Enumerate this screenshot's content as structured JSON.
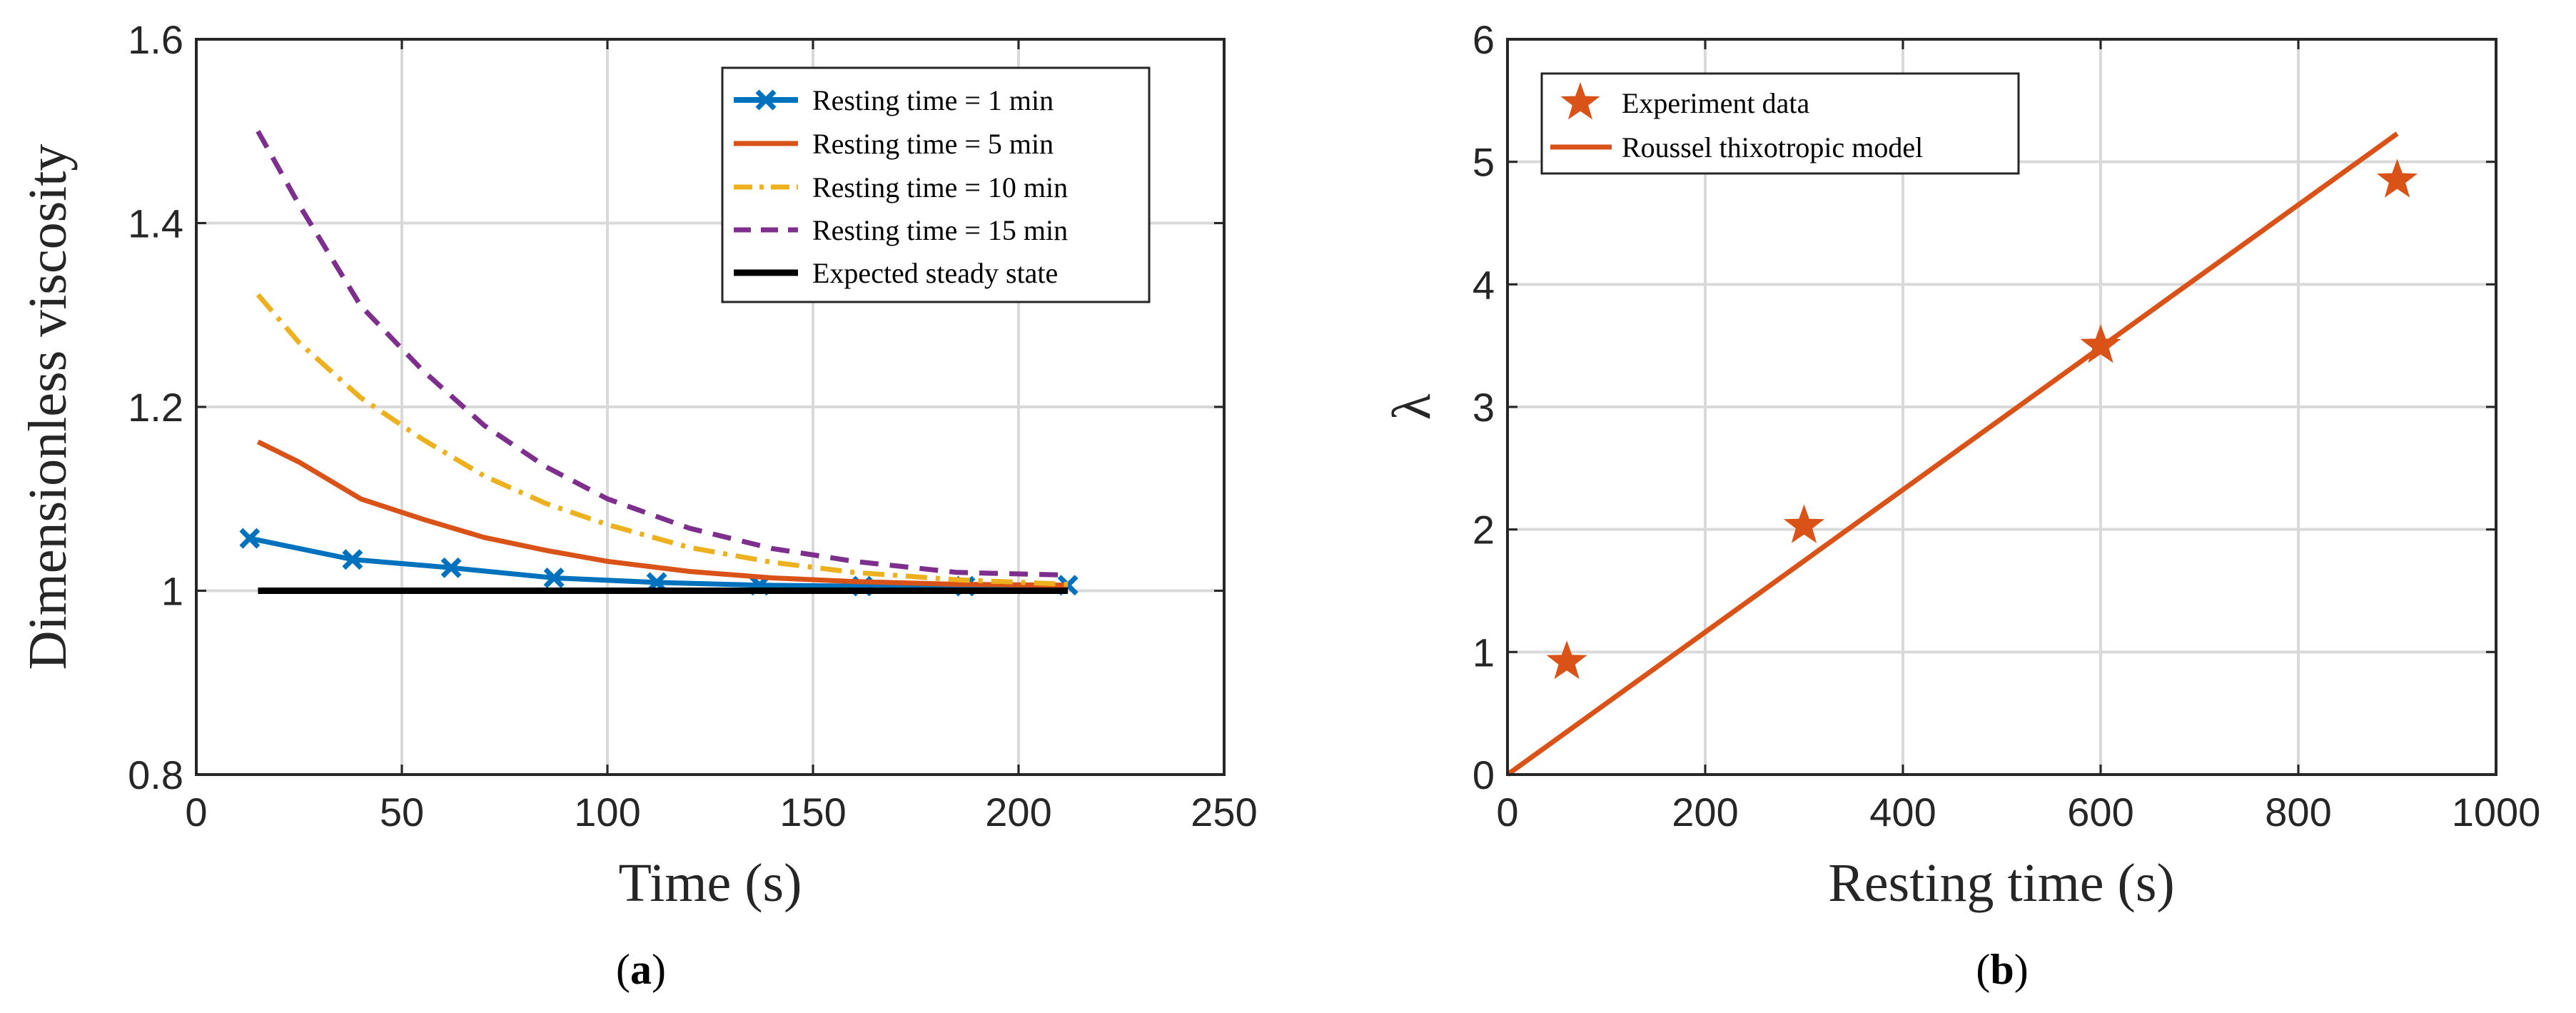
{
  "chart_data": [
    {
      "id": "a",
      "type": "line",
      "xlabel": "Time (s)",
      "ylabel": "Dimensionless viscosity",
      "xlim": [
        0,
        250
      ],
      "ylim": [
        0.8,
        1.6
      ],
      "xticks": [
        0,
        50,
        100,
        150,
        200,
        250
      ],
      "yticks": [
        0.8,
        1.0,
        1.2,
        1.4,
        1.6
      ],
      "xtick_labels": [
        "0",
        "50",
        "100",
        "150",
        "200",
        "250"
      ],
      "ytick_labels": [
        "0.8",
        "1",
        "1.2",
        "1.4",
        "1.6"
      ],
      "grid": true,
      "legend_position": "top-right",
      "caption_open": "(",
      "caption_letter": "a",
      "caption_close": ")",
      "series": [
        {
          "name": "Resting time = 1 min",
          "color": "#0072BD",
          "style": "solid",
          "marker": "x",
          "x": [
            13,
            38,
            62,
            87,
            112,
            137,
            162,
            187,
            212
          ],
          "y": [
            1.057,
            1.034,
            1.025,
            1.014,
            1.009,
            1.006,
            1.005,
            1.005,
            1.006
          ]
        },
        {
          "name": "Resting time = 5 min",
          "color": "#D95319",
          "style": "solid",
          "marker": "none",
          "x": [
            15,
            25,
            40,
            55,
            70,
            85,
            100,
            120,
            140,
            160,
            185,
            212
          ],
          "y": [
            1.162,
            1.14,
            1.1,
            1.078,
            1.058,
            1.044,
            1.032,
            1.021,
            1.014,
            1.01,
            1.007,
            1.006
          ]
        },
        {
          "name": "Resting time = 10 min",
          "color": "#EDB120",
          "style": "dashdot",
          "marker": "none",
          "x": [
            15,
            25,
            40,
            55,
            70,
            85,
            100,
            120,
            140,
            160,
            185,
            212
          ],
          "y": [
            1.322,
            1.27,
            1.21,
            1.165,
            1.125,
            1.095,
            1.072,
            1.047,
            1.031,
            1.02,
            1.012,
            1.007
          ]
        },
        {
          "name": "Resting time = 15 min",
          "color": "#7E2F8E",
          "style": "dashed",
          "marker": "none",
          "x": [
            15,
            25,
            40,
            55,
            70,
            85,
            100,
            120,
            140,
            160,
            185,
            212
          ],
          "y": [
            1.5,
            1.42,
            1.31,
            1.24,
            1.18,
            1.135,
            1.1,
            1.068,
            1.046,
            1.032,
            1.02,
            1.017
          ]
        },
        {
          "name": "Expected steady state",
          "color": "#000000",
          "style": "solid",
          "marker": "none",
          "x": [
            15,
            212
          ],
          "y": [
            1.0,
            1.0
          ]
        }
      ]
    },
    {
      "id": "b",
      "type": "scatter",
      "xlabel": "Resting time (s)",
      "ylabel": "λ",
      "xlim": [
        0,
        1000
      ],
      "ylim": [
        0,
        6
      ],
      "xticks": [
        0,
        200,
        400,
        600,
        800,
        1000
      ],
      "yticks": [
        0,
        1,
        2,
        3,
        4,
        5,
        6
      ],
      "xtick_labels": [
        "0",
        "200",
        "400",
        "600",
        "800",
        "1000"
      ],
      "ytick_labels": [
        "0",
        "1",
        "2",
        "3",
        "4",
        "5",
        "6"
      ],
      "grid": true,
      "legend_position": "top-left",
      "caption_open": "(",
      "caption_letter": "b",
      "caption_close": ")",
      "series": [
        {
          "name": "Experiment data",
          "color": "#D95319",
          "style": "none",
          "marker": "star",
          "x": [
            60,
            300,
            600,
            900
          ],
          "y": [
            0.92,
            2.03,
            3.5,
            4.85
          ]
        },
        {
          "name": "Roussel thixotropic model",
          "color": "#D95319",
          "style": "solid",
          "marker": "none",
          "x": [
            0,
            900
          ],
          "y": [
            0,
            5.23
          ]
        }
      ]
    }
  ]
}
